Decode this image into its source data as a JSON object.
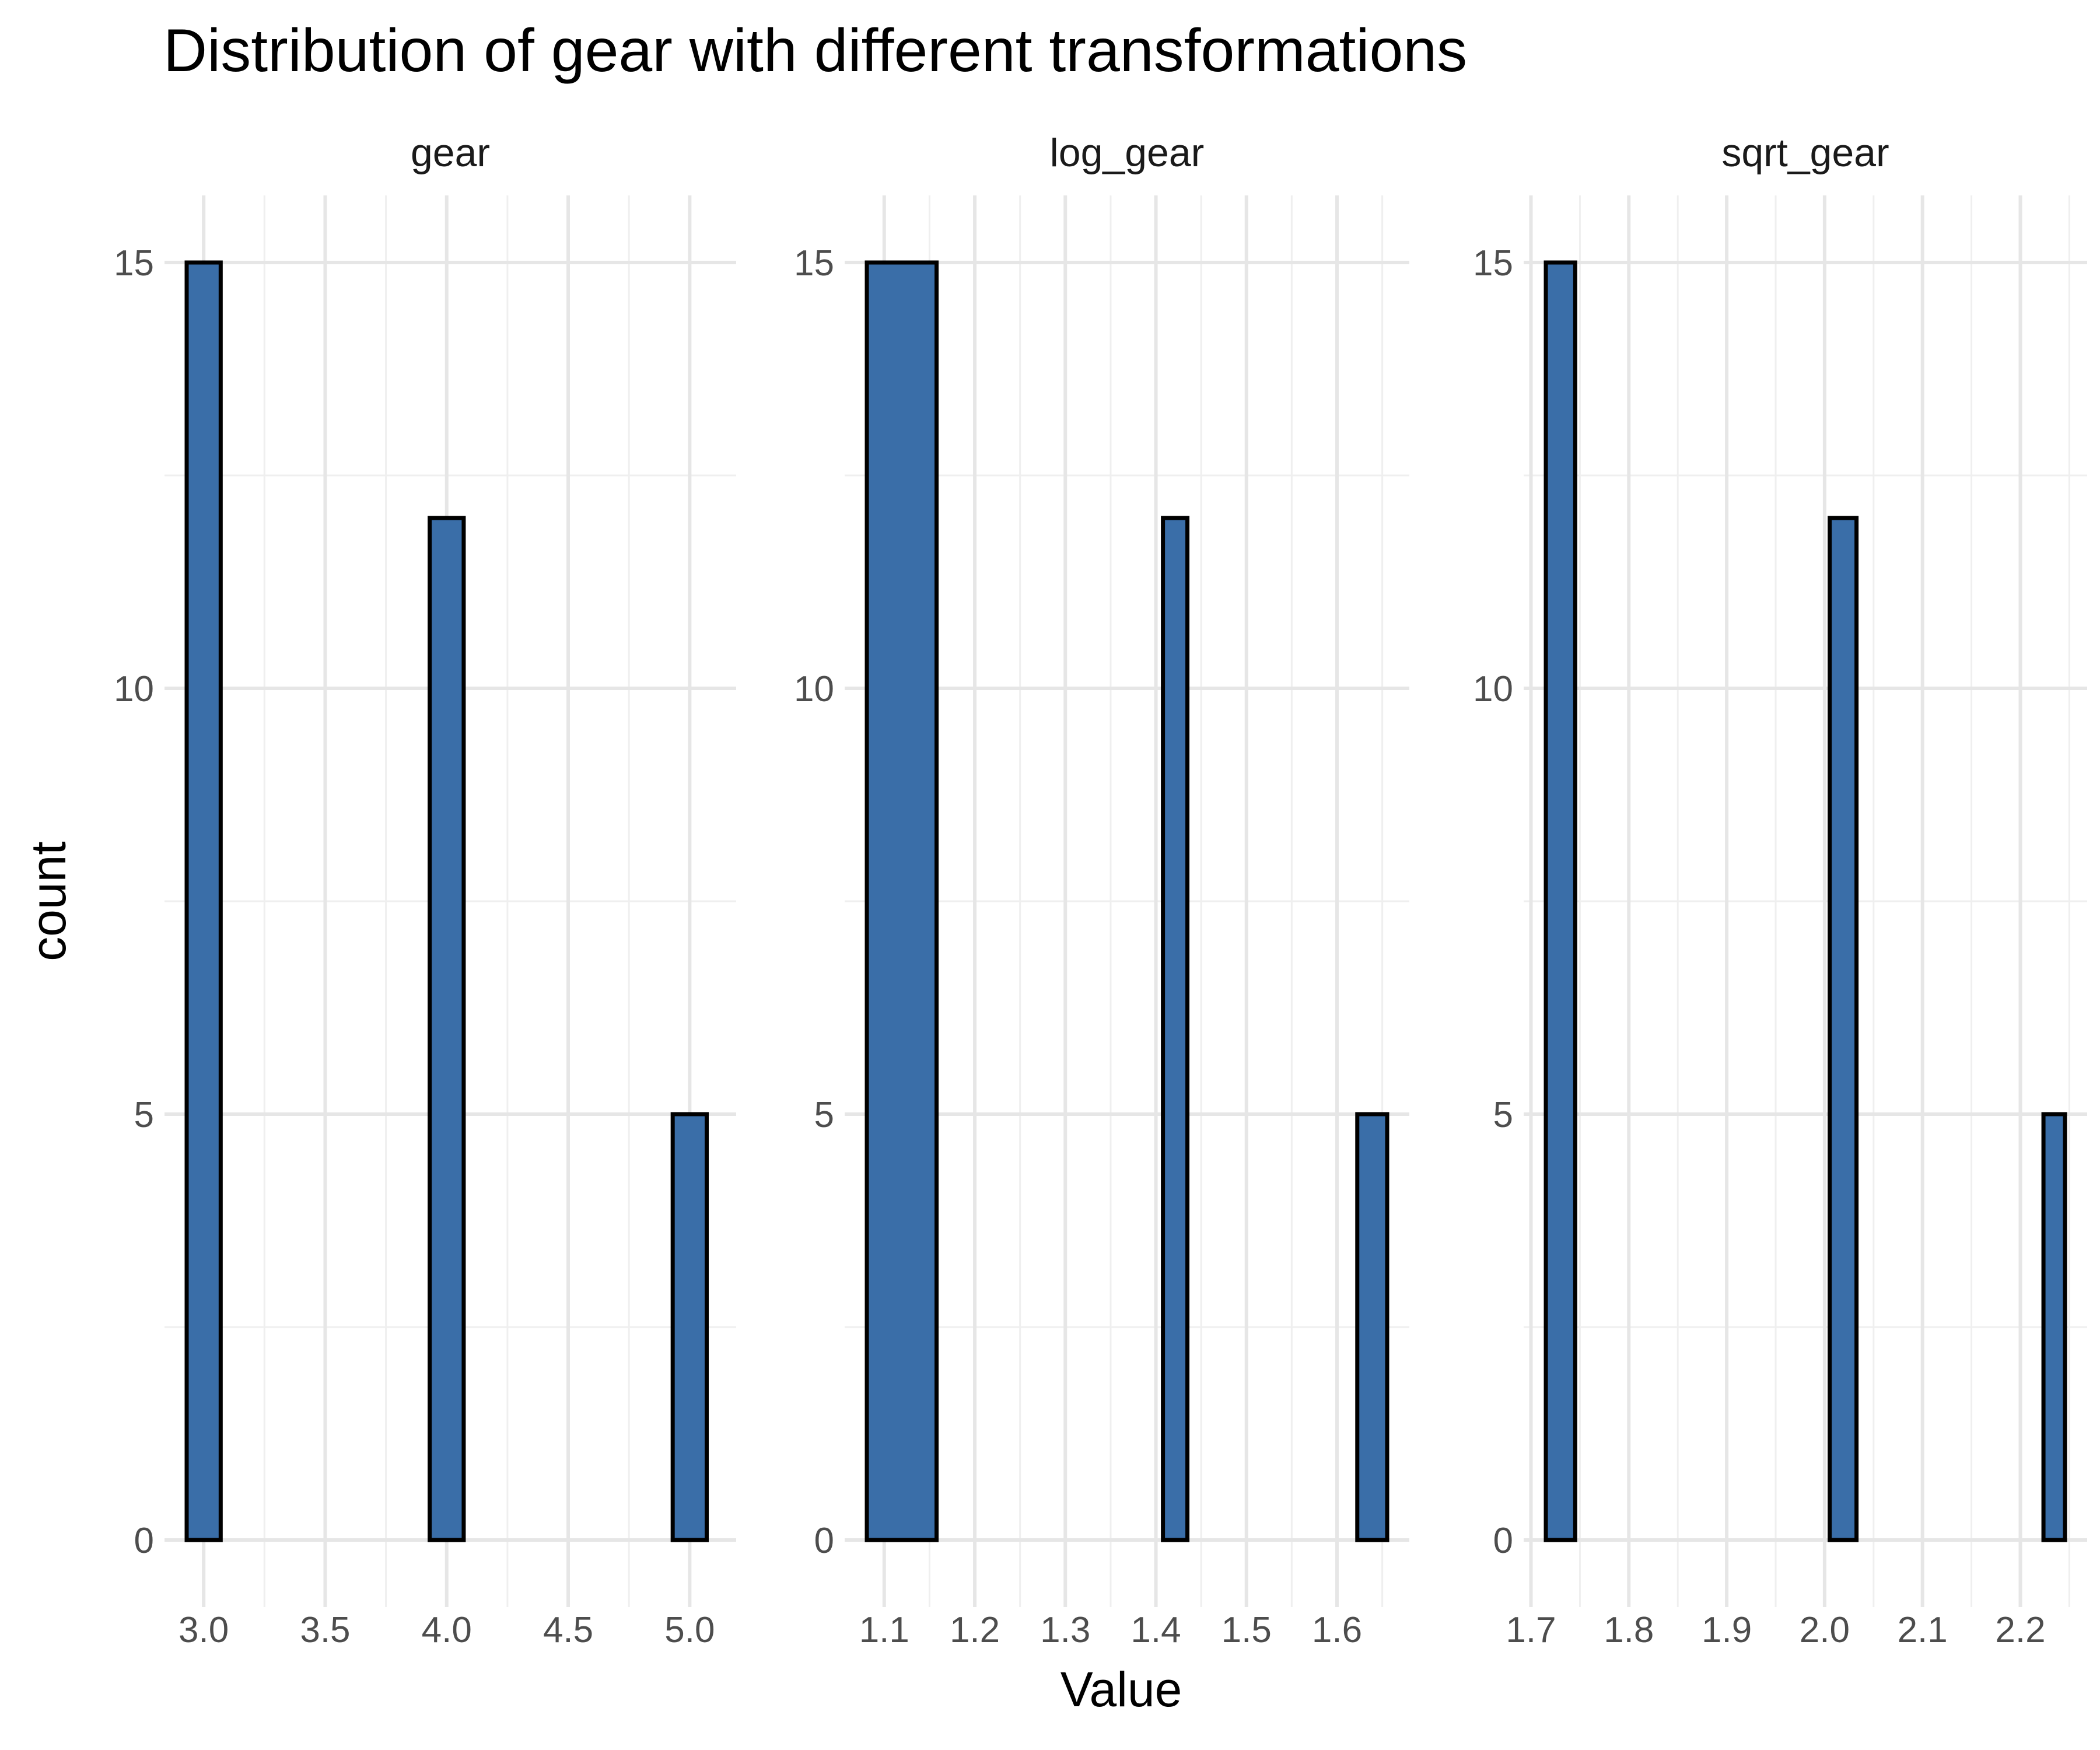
{
  "chart_data": {
    "type": "bar",
    "title": "Distribution of gear with different transformations",
    "xlabel": "Value",
    "ylabel": "count",
    "bar_color": "#3A6EA8",
    "outline_color": "#000000",
    "grid": true,
    "y_ticks": [
      0,
      5,
      10,
      15
    ],
    "ylim": [
      0,
      15.75
    ],
    "panels": [
      {
        "name": "gear",
        "xlim": [
          2.93,
          5.1
        ],
        "x_ticks": [
          {
            "value": 3.0,
            "label": "3.0"
          },
          {
            "value": 3.5,
            "label": "3.5"
          },
          {
            "value": 4.0,
            "label": "4.0"
          },
          {
            "value": 4.5,
            "label": "4.5"
          },
          {
            "value": 5.0,
            "label": "5.0"
          }
        ],
        "bins": [
          {
            "x0": 2.93,
            "x1": 3.07,
            "count": 15
          },
          {
            "x0": 3.07,
            "x1": 3.93,
            "count": 0
          },
          {
            "x0": 3.93,
            "x1": 4.07,
            "count": 12
          },
          {
            "x0": 4.07,
            "x1": 4.93,
            "count": 0
          },
          {
            "x0": 4.93,
            "x1": 5.07,
            "count": 5
          }
        ]
      },
      {
        "name": "log_gear",
        "xlim": [
          1.0808,
          1.6554
        ],
        "x_ticks": [
          {
            "value": 1.1,
            "label": "1.1"
          },
          {
            "value": 1.2,
            "label": "1.2"
          },
          {
            "value": 1.3,
            "label": "1.3"
          },
          {
            "value": 1.4,
            "label": "1.4"
          },
          {
            "value": 1.5,
            "label": "1.5"
          },
          {
            "value": 1.6,
            "label": "1.6"
          }
        ],
        "bins": [
          {
            "x0": 1.0808,
            "x1": 1.1578,
            "count": 15
          },
          {
            "x0": 1.1578,
            "x1": 1.4078,
            "count": 0
          },
          {
            "x0": 1.4078,
            "x1": 1.4348,
            "count": 12
          },
          {
            "x0": 1.4348,
            "x1": 1.6224,
            "count": 0
          },
          {
            "x0": 1.6224,
            "x1": 1.6554,
            "count": 5
          }
        ]
      },
      {
        "name": "sqrt_gear",
        "xlim": [
          1.7152,
          2.2456
        ],
        "x_ticks": [
          {
            "value": 1.7,
            "label": "1.7"
          },
          {
            "value": 1.8,
            "label": "1.8"
          },
          {
            "value": 1.9,
            "label": "1.9"
          },
          {
            "value": 2.0,
            "label": "2.0"
          },
          {
            "value": 2.1,
            "label": "2.1"
          },
          {
            "value": 2.2,
            "label": "2.2"
          }
        ],
        "bins": [
          {
            "x0": 1.7152,
            "x1": 1.7452,
            "count": 15
          },
          {
            "x0": 1.7452,
            "x1": 2.0052,
            "count": 0
          },
          {
            "x0": 2.0052,
            "x1": 2.0326,
            "count": 12
          },
          {
            "x0": 2.0326,
            "x1": 2.2236,
            "count": 0
          },
          {
            "x0": 2.2236,
            "x1": 2.2456,
            "count": 5
          }
        ]
      }
    ]
  }
}
